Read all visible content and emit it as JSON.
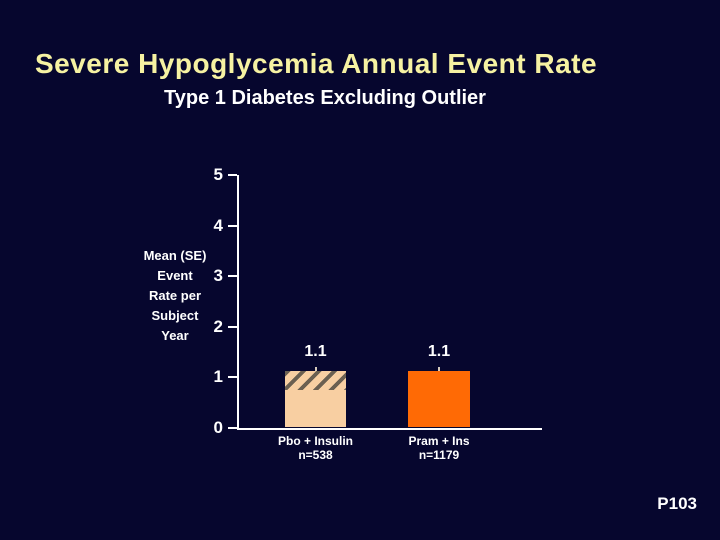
{
  "slide": {
    "title": "Severe Hypoglycemia Annual Event Rate",
    "subtitle": "Type 1 Diabetes Excluding Outlier",
    "footer": "P103"
  },
  "chart_data": {
    "type": "bar",
    "title": "Severe Hypoglycemia Annual Event Rate",
    "subtitle": "Type 1 Diabetes Excluding Outlier",
    "ylabel": "Mean (SE) Event Rate per Subject Year",
    "ylabel_multiline": "Mean (SE)\nEvent\nRate per\nSubject\nYear",
    "xlabel": "",
    "ylim": [
      0,
      5
    ],
    "yticks": [
      0,
      1,
      2,
      3,
      4,
      5
    ],
    "grid": false,
    "legend": "none",
    "categories": [
      "Pbo + Insulin",
      "Pram + Ins"
    ],
    "category_sublabels": [
      "n=538",
      "n=1179"
    ],
    "values": [
      1.1,
      1.1
    ],
    "error_bars_se": true,
    "bars": [
      {
        "label": "Pbo + Insulin",
        "n_label": "n=538",
        "value": 1.1,
        "value_label": "1.1",
        "fill": "#f8cfa2",
        "hatched": true
      },
      {
        "label": "Pram + Ins",
        "n_label": "n=1179",
        "value": 1.1,
        "value_label": "1.1",
        "fill": "#ff6a05",
        "hatched": false
      }
    ],
    "colors": {
      "background": "#06062e",
      "title": "#f6f2a2",
      "text": "#ffffff",
      "axis": "#ffffff",
      "bar_placebo": "#f8cfa2",
      "bar_pram": "#ff6a05",
      "hatch_stripe": "#5c5448"
    }
  }
}
